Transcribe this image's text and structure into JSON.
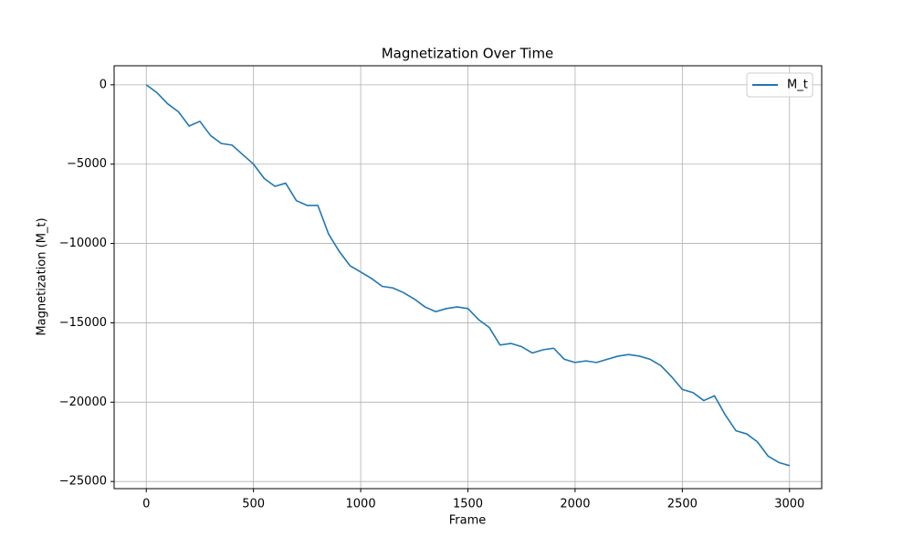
{
  "chart_data": {
    "type": "line",
    "title": "Magnetization Over Time",
    "xlabel": "Frame",
    "ylabel": "Magnetization (M_t)",
    "x": [
      0,
      50,
      100,
      150,
      200,
      250,
      300,
      350,
      400,
      450,
      500,
      550,
      600,
      650,
      700,
      750,
      800,
      850,
      900,
      950,
      1000,
      1050,
      1100,
      1150,
      1200,
      1250,
      1300,
      1350,
      1400,
      1450,
      1500,
      1550,
      1600,
      1650,
      1700,
      1750,
      1800,
      1850,
      1900,
      1950,
      2000,
      2050,
      2100,
      2150,
      2200,
      2250,
      2300,
      2350,
      2400,
      2450,
      2500,
      2550,
      2600,
      2650,
      2700,
      2750,
      2800,
      2850,
      2900,
      2950,
      3000
    ],
    "series": [
      {
        "name": "M_t",
        "color": "#1f77b4",
        "values": [
          0,
          -500,
          -1200,
          -1700,
          -2600,
          -2300,
          -3200,
          -3700,
          -3800,
          -4400,
          -5000,
          -5900,
          -6400,
          -6200,
          -7300,
          -7600,
          -7600,
          -9400,
          -10500,
          -11400,
          -11800,
          -12200,
          -12700,
          -12800,
          -13100,
          -13500,
          -14000,
          -14300,
          -14100,
          -14000,
          -14100,
          -14800,
          -15300,
          -16400,
          -16300,
          -16500,
          -16900,
          -16700,
          -16600,
          -17300,
          -17500,
          -17400,
          -17500,
          -17300,
          -17100,
          -17000,
          -17100,
          -17300,
          -17700,
          -18400,
          -19200,
          -19400,
          -19900,
          -19600,
          -20800,
          -21800,
          -22000,
          -22500,
          -23400,
          -23800,
          -24000
        ]
      }
    ],
    "xlim": [
      -150,
      3150
    ],
    "ylim": [
      -25450,
      1200
    ],
    "xticks": [
      0,
      500,
      1000,
      1500,
      2000,
      2500,
      3000
    ],
    "yticks": [
      0,
      {
        "value": -5000,
        "label": "−5000"
      },
      {
        "value": -10000,
        "label": "−10000"
      },
      {
        "value": -15000,
        "label": "−15000"
      },
      {
        "value": -20000,
        "label": "−20000"
      },
      {
        "value": -25000,
        "label": "−25000"
      }
    ],
    "grid": true,
    "legend": "upper right"
  }
}
